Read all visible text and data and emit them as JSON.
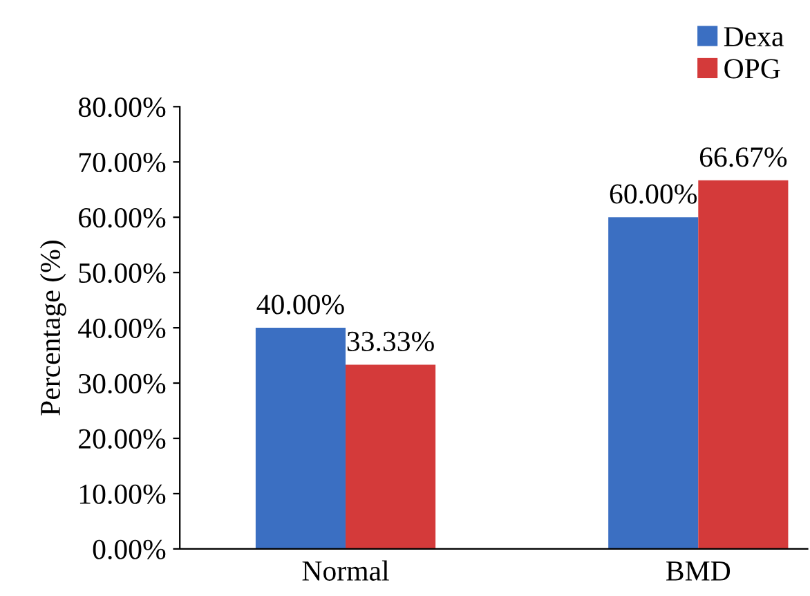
{
  "chart_data": {
    "type": "bar",
    "ylabel": "Percentage (%)",
    "categories": [
      "Normal",
      "BMD"
    ],
    "series": [
      {
        "name": "Dexa",
        "color": "#3b6fc2",
        "values": [
          40,
          60
        ],
        "value_labels": [
          "40.00%",
          "60.00%"
        ]
      },
      {
        "name": "OPG",
        "color": "#d43a3a",
        "values": [
          33.33,
          66.67
        ],
        "value_labels": [
          "33.33%",
          "66.67%"
        ]
      }
    ],
    "ylim": [
      0,
      80
    ],
    "yticks": [
      {
        "value": 0,
        "label": "0.00%"
      },
      {
        "value": 10,
        "label": "10.00%"
      },
      {
        "value": 20,
        "label": "20.00%"
      },
      {
        "value": 30,
        "label": "30.00%"
      },
      {
        "value": 40,
        "label": "40.00%"
      },
      {
        "value": 50,
        "label": "50.00%"
      },
      {
        "value": 60,
        "label": "60.00%"
      },
      {
        "value": 70,
        "label": "70.00%"
      },
      {
        "value": 80,
        "label": "80.00%"
      }
    ],
    "grid": false,
    "legend": "top right"
  }
}
